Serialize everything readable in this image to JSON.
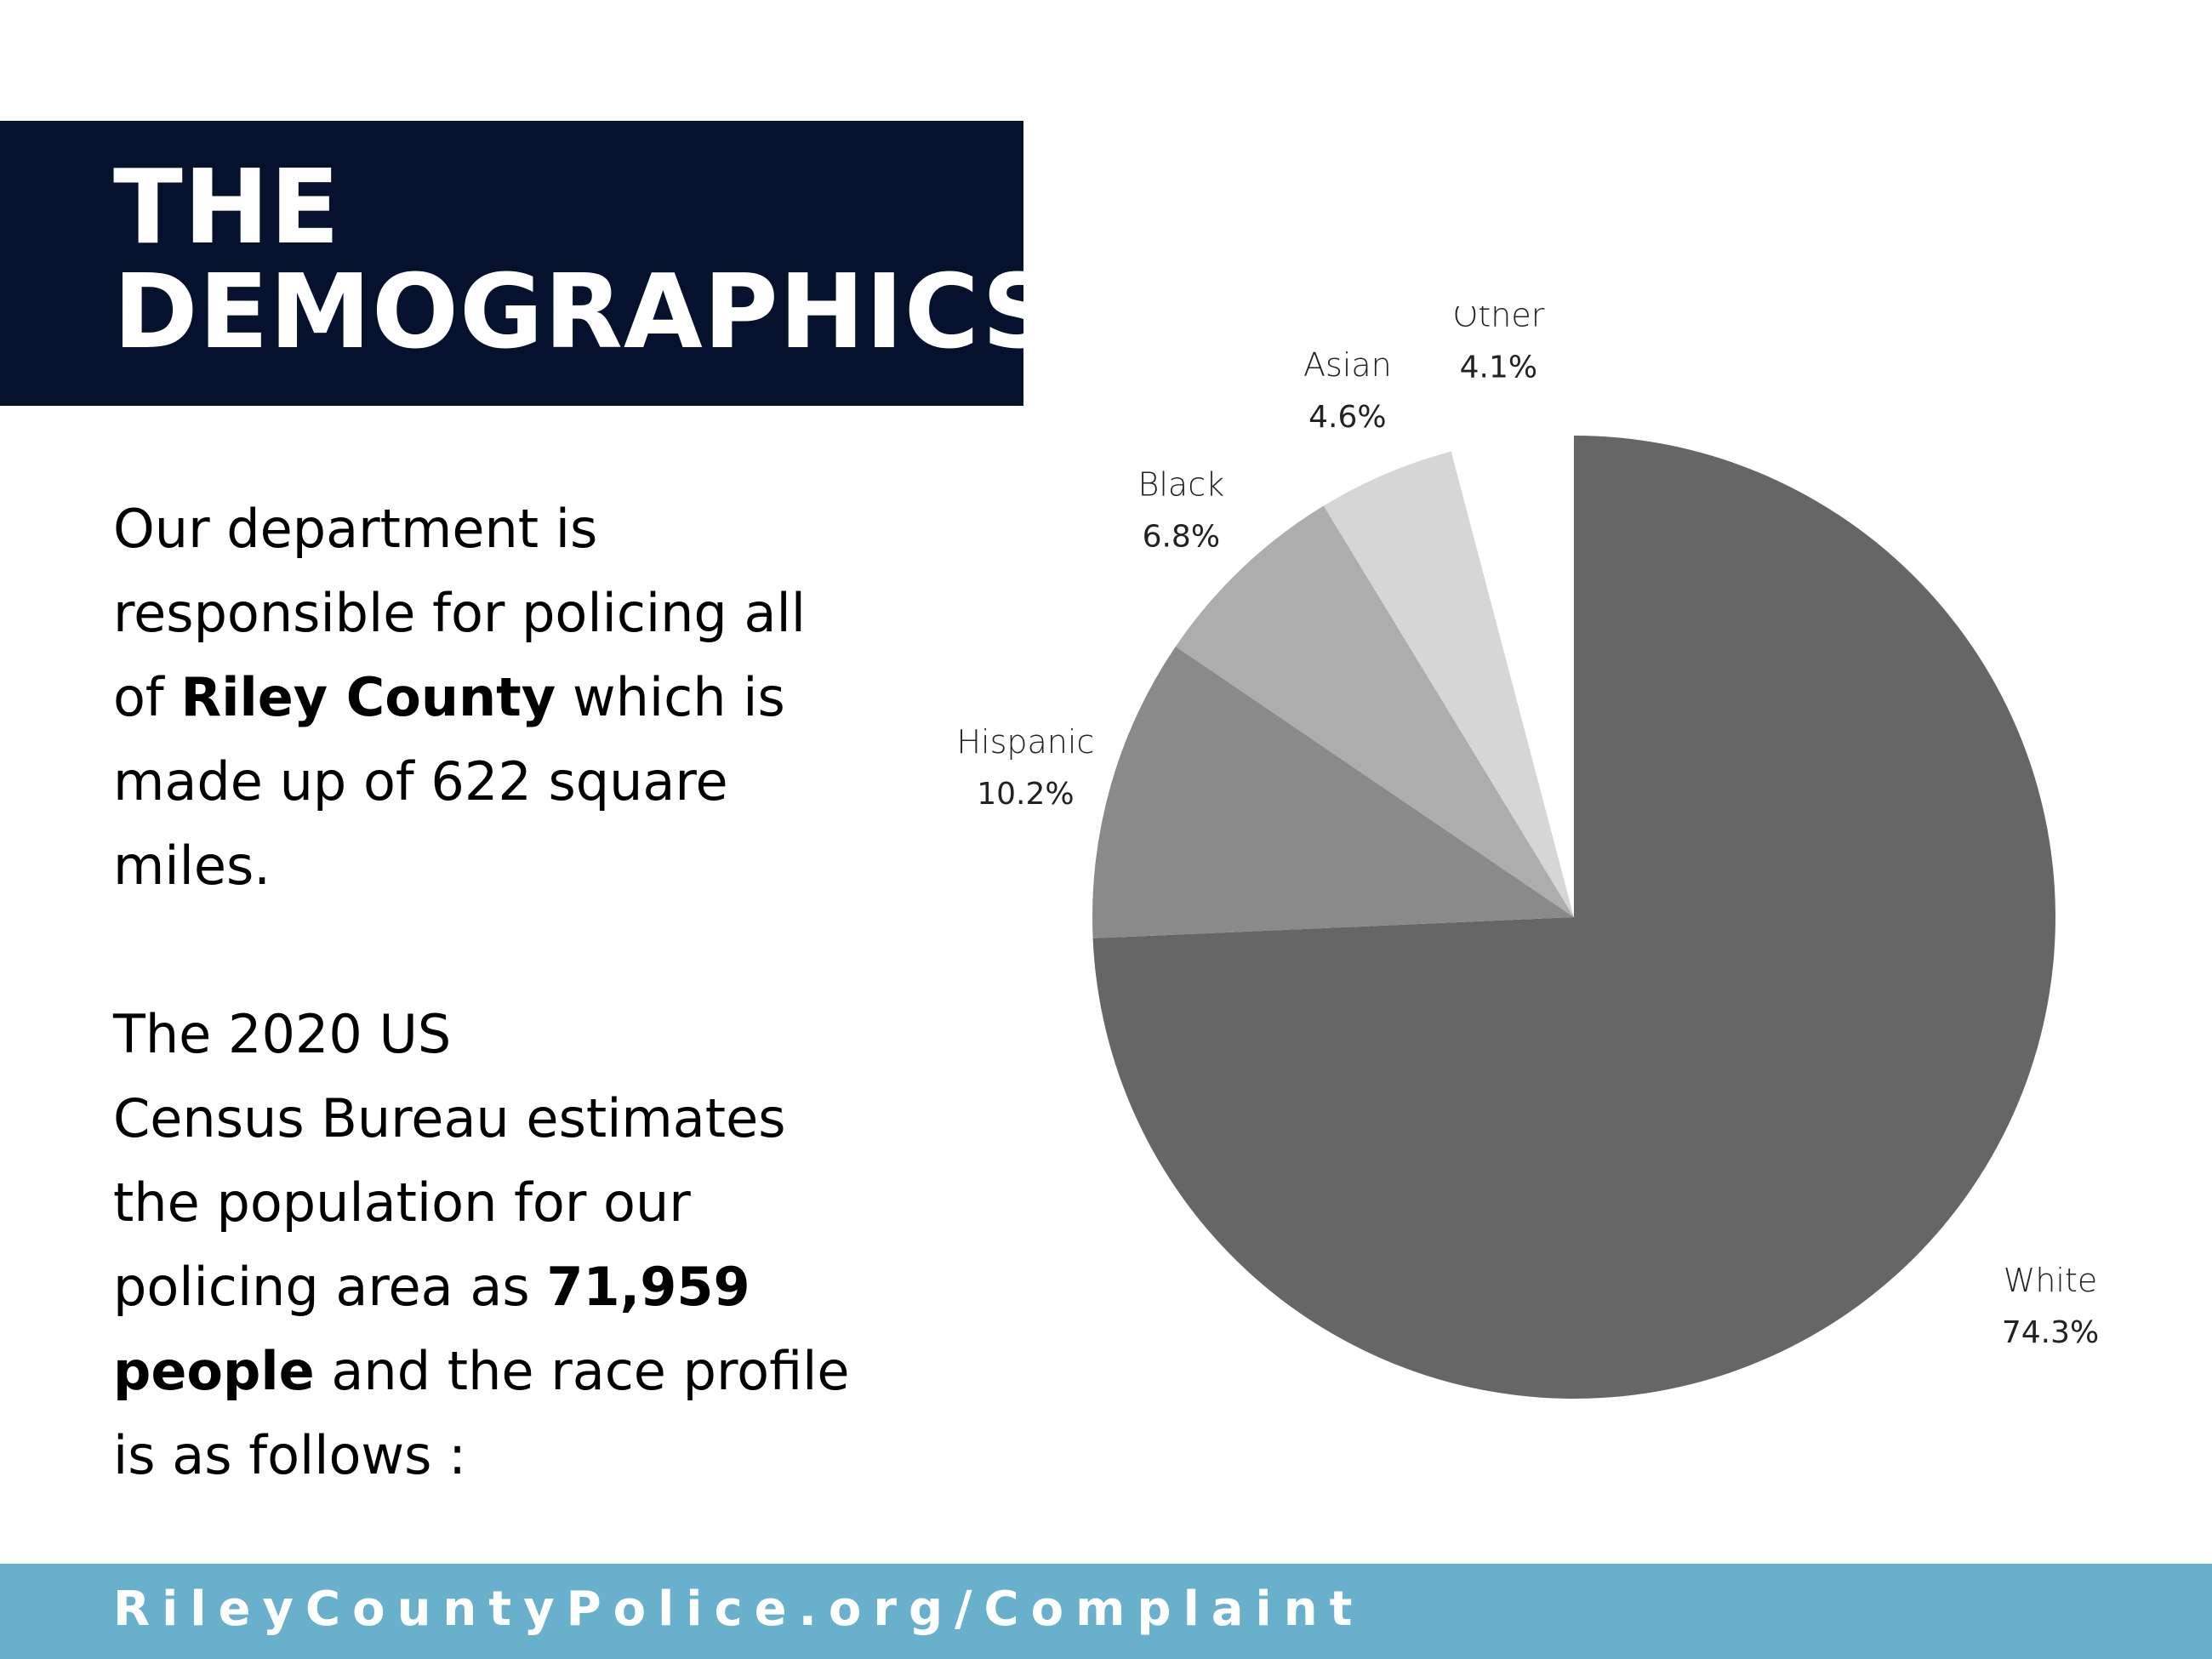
{
  "title": {
    "line1": "THE",
    "line2": "DEMOGRAPHICS"
  },
  "paragraph1": {
    "l1": "Our department is",
    "l2": "responsible for policing all",
    "l3_pre": "of ",
    "l3_bold": "Riley County",
    "l3_post": " which is",
    "l4": "made up of 622 square",
    "l5": "miles."
  },
  "paragraph2": {
    "l1": "The 2020 US",
    "l2": "Census Bureau estimates",
    "l3": "the population for our",
    "l4_pre": "policing area as ",
    "l4_bold": "71,959",
    "l5_bold": "people",
    "l5_post": " and the race profile",
    "l6": "is as follows :"
  },
  "footer": {
    "url": "RileyCountyPolice.org/Complaint"
  },
  "colors": {
    "banner": "#06112e",
    "footer": "#68b0cb"
  },
  "chart_data": {
    "type": "pie",
    "title": "",
    "slices": [
      {
        "label": "White",
        "percent_label": "74.3%",
        "value": 74.3,
        "color": "#666666"
      },
      {
        "label": "Hispanic",
        "percent_label": "10.2%",
        "value": 10.2,
        "color": "#8a8a8a"
      },
      {
        "label": "Black",
        "percent_label": "6.8%",
        "value": 6.8,
        "color": "#adadad"
      },
      {
        "label": "Asian",
        "percent_label": "4.6%",
        "value": 4.6,
        "color": "#d6d6d6"
      },
      {
        "label": "Other",
        "percent_label": "4.1%",
        "value": 4.1,
        "color": "#ffffff"
      }
    ]
  }
}
